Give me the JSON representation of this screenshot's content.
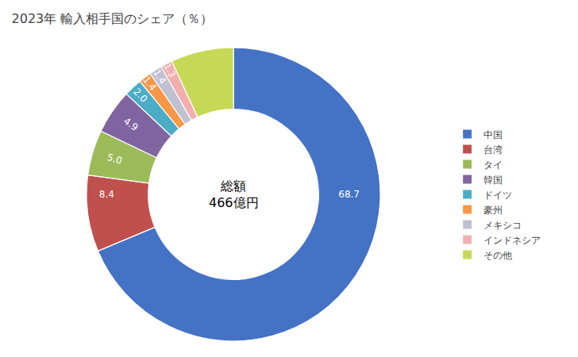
{
  "chart_data": {
    "type": "pie",
    "title": "2023年 輸入相手国のシェア（％）",
    "annotations": [
      "総額",
      "466億円"
    ],
    "categories": [
      "中国",
      "台湾",
      "タイ",
      "韓国",
      "ドイツ",
      "豪州",
      "メキシコ",
      "インドネシア",
      "その他"
    ],
    "values": [
      68.7,
      8.4,
      5.0,
      4.9,
      2.0,
      1.4,
      1.4,
      1.3,
      6.9
    ],
    "value_labels": [
      "68.7",
      "8.4",
      "5.0",
      "4.9",
      "2.0",
      "1.4",
      "1.4",
      "1.3",
      null
    ],
    "colors": [
      "#4472C4",
      "#C0504D",
      "#9BBB59",
      "#8064A2",
      "#4BACC6",
      "#F79646",
      "#C0C0D0",
      "#F2AFAE",
      "#C6D956"
    ],
    "data_labels": true,
    "legend": "right"
  }
}
